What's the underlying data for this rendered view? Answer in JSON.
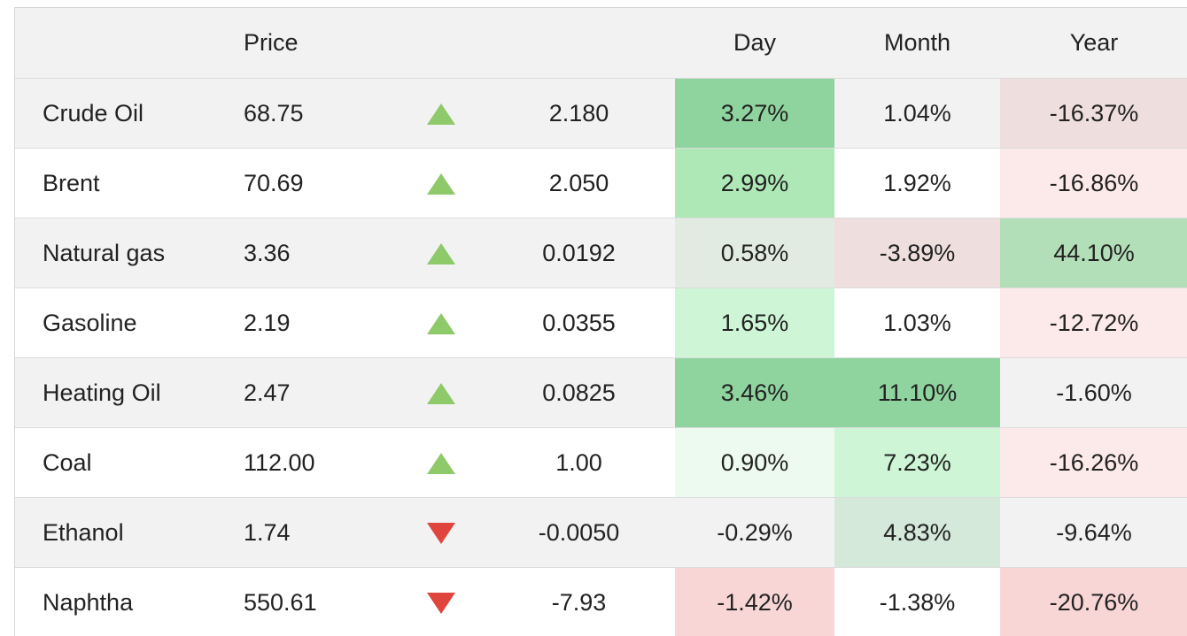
{
  "header": {
    "col_name": "",
    "col_price": "Price",
    "col_arrow": "",
    "col_change": "",
    "col_day": "Day",
    "col_month": "Month",
    "col_year": "Year"
  },
  "rows": [
    {
      "name": "Crude Oil",
      "price": "68.75",
      "direction": "up",
      "change": "2.180",
      "day": "3.27%",
      "day_bg": "#8fd49e",
      "month": "1.04%",
      "month_bg": "",
      "year": "-16.37%",
      "year_bg": "#eedede"
    },
    {
      "name": "Brent",
      "price": "70.69",
      "direction": "up",
      "change": "2.050",
      "day": "2.99%",
      "day_bg": "#aee8b6",
      "month": "1.92%",
      "month_bg": "",
      "year": "-16.86%",
      "year_bg": "#fce9e9"
    },
    {
      "name": "Natural gas",
      "price": "3.36",
      "direction": "up",
      "change": "0.0192",
      "day": "0.58%",
      "day_bg": "#e2ebe2",
      "month": "-3.89%",
      "month_bg": "#eedede",
      "year": "44.10%",
      "year_bg": "#b3dfb8"
    },
    {
      "name": "Gasoline",
      "price": "2.19",
      "direction": "up",
      "change": "0.0355",
      "day": "1.65%",
      "day_bg": "#cdf5d6",
      "month": "1.03%",
      "month_bg": "",
      "year": "-12.72%",
      "year_bg": "#fce9e9"
    },
    {
      "name": "Heating Oil",
      "price": "2.47",
      "direction": "up",
      "change": "0.0825",
      "day": "3.46%",
      "day_bg": "#8fd49e",
      "month": "11.10%",
      "month_bg": "#8fd49e",
      "year": "-1.60%",
      "year_bg": ""
    },
    {
      "name": "Coal",
      "price": "112.00",
      "direction": "up",
      "change": "1.00",
      "day": "0.90%",
      "day_bg": "#edfaef",
      "month": "7.23%",
      "month_bg": "#cdf5d6",
      "year": "-16.26%",
      "year_bg": "#fce9e9"
    },
    {
      "name": "Ethanol",
      "price": "1.74",
      "direction": "down",
      "change": "-0.0050",
      "day": "-0.29%",
      "day_bg": "",
      "month": "4.83%",
      "month_bg": "#d4e9da",
      "year": "-9.64%",
      "year_bg": ""
    },
    {
      "name": "Naphtha",
      "price": "550.61",
      "direction": "down",
      "change": "-7.93",
      "day": "-1.42%",
      "day_bg": "#f8d6d6",
      "month": "-1.38%",
      "month_bg": "",
      "year": "-20.76%",
      "year_bg": "#f8d6d6"
    }
  ]
}
